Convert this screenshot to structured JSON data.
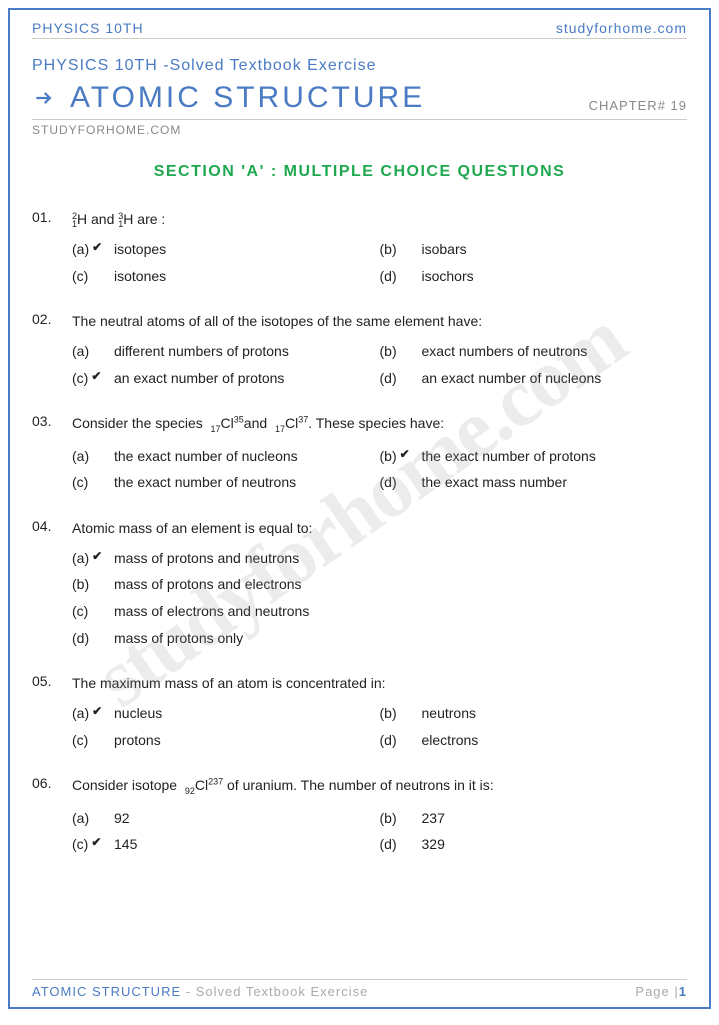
{
  "colors": {
    "accent": "#4a7bc4",
    "section": "#1fa84f",
    "muted": "#888",
    "text": "#222"
  },
  "header": {
    "left": "PHYSICS 10TH",
    "right": "studyforhome.com",
    "subtitle": "PHYSICS 10TH -Solved Textbook Exercise",
    "title": "ATOMIC STRUCTURE",
    "chapter": "CHAPTER# 19",
    "site": "STUDYFORHOME.COM"
  },
  "watermark": "studyforhome.com",
  "section_title": "SECTION 'A' : MULTIPLE CHOICE QUESTIONS",
  "questions": [
    {
      "num": "01.",
      "text_html": "<span class='isotope'><span>2</span><span>1</span></span>H and <span class='isotope'><span>3</span><span>1</span></span>H are :",
      "layout": "two-col",
      "options": [
        {
          "label": "(a)",
          "correct": true,
          "text": "isotopes"
        },
        {
          "label": "(b)",
          "correct": false,
          "text": "isobars"
        },
        {
          "label": "(c)",
          "correct": false,
          "text": "isotones"
        },
        {
          "label": "(d)",
          "correct": false,
          "text": "isochors"
        }
      ]
    },
    {
      "num": "02.",
      "text_html": "The neutral atoms of all of the isotopes of the same element have:",
      "layout": "two-col",
      "options": [
        {
          "label": "(a)",
          "correct": false,
          "text": "different numbers of protons"
        },
        {
          "label": "(b)",
          "correct": false,
          "text": "exact numbers of neutrons"
        },
        {
          "label": "(c)",
          "correct": true,
          "text": "an exact number of protons"
        },
        {
          "label": "(d)",
          "correct": false,
          "text": "an exact number of nucleons"
        }
      ]
    },
    {
      "num": "03.",
      "text_html": "Consider the species &nbsp;<span class='sub'>17</span>Cl<span class='sup'>35</span>and &nbsp;<span class='sub'>17</span>Cl<span class='sup'>37</span>. These species have:",
      "layout": "two-col",
      "options": [
        {
          "label": "(a)",
          "correct": false,
          "text": "the exact number of nucleons"
        },
        {
          "label": "(b)",
          "correct": true,
          "text": "the exact number of protons"
        },
        {
          "label": "(c)",
          "correct": false,
          "text": "the exact number of neutrons"
        },
        {
          "label": "(d)",
          "correct": false,
          "text": "the exact mass number"
        }
      ]
    },
    {
      "num": "04.",
      "text_html": "Atomic mass of an element is equal to:",
      "layout": "one-col",
      "options": [
        {
          "label": "(a)",
          "correct": true,
          "text": "mass of protons and neutrons"
        },
        {
          "label": "(b)",
          "correct": false,
          "text": "mass of protons and electrons"
        },
        {
          "label": "(c)",
          "correct": false,
          "text": "mass of electrons and neutrons"
        },
        {
          "label": "(d)",
          "correct": false,
          "text": "mass of protons only"
        }
      ]
    },
    {
      "num": "05.",
      "text_html": "The maximum mass of an atom is concentrated in:",
      "layout": "two-col",
      "options": [
        {
          "label": "(a)",
          "correct": true,
          "text": "nucleus"
        },
        {
          "label": "(b)",
          "correct": false,
          "text": "neutrons"
        },
        {
          "label": "(c)",
          "correct": false,
          "text": "protons"
        },
        {
          "label": "(d)",
          "correct": false,
          "text": "electrons"
        }
      ]
    },
    {
      "num": "06.",
      "text_html": "Consider isotope &nbsp;<span class='sub'>92</span>Cl<span class='sup'>237</span> of uranium. The number of neutrons in it is:",
      "layout": "two-col",
      "options": [
        {
          "label": "(a)",
          "correct": false,
          "text": "92"
        },
        {
          "label": "(b)",
          "correct": false,
          "text": "237"
        },
        {
          "label": "(c)",
          "correct": true,
          "text": "145"
        },
        {
          "label": "(d)",
          "correct": false,
          "text": "329"
        }
      ]
    }
  ],
  "footer": {
    "title": "ATOMIC STRUCTURE",
    "sub": " - Solved Textbook Exercise",
    "page_label": "Page |",
    "page_num": "1"
  }
}
